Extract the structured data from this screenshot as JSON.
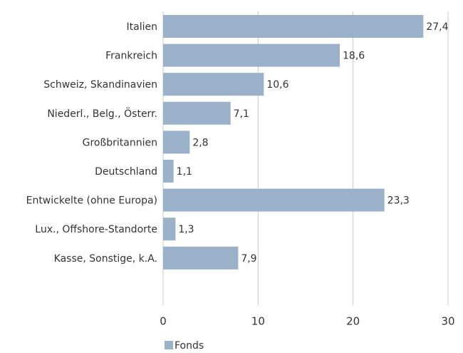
{
  "chart_data": {
    "type": "bar",
    "orientation": "horizontal",
    "categories": [
      "Italien",
      "Frankreich",
      "Schweiz, Skandinavien",
      "Niederl., Belg., Österr.",
      "Großbritannien",
      "Deutschland",
      "Entwickelte (ohne Europa)",
      "Lux., Offshore-Standorte",
      "Kasse, Sonstige, k.A."
    ],
    "series": [
      {
        "name": "Fonds",
        "color": "#9bb0c9",
        "values": [
          27.4,
          18.6,
          10.6,
          7.1,
          2.8,
          1.1,
          23.3,
          1.3,
          7.9
        ],
        "value_labels": [
          "27,4",
          "18,6",
          "10,6",
          "7,1",
          "2,8",
          "1,1",
          "23,3",
          "1,3",
          "7,9"
        ]
      }
    ],
    "xlim": [
      0,
      30
    ],
    "xticks": [
      0,
      10,
      20,
      30
    ],
    "grid": true,
    "legend": "bottom"
  }
}
